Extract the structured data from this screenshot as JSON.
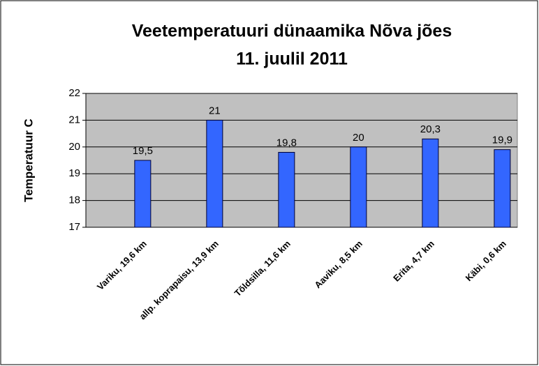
{
  "chart_data": {
    "type": "bar",
    "title": "Veetemperatuuri dünaamika Nõva jões",
    "subtitle": "11. juulil 2011",
    "y_label": "Temperatuur C",
    "categories": [
      "Variku, 19,6 km",
      "allp. koprapaisu, 13,9 km",
      "Tõldsilla, 11,6 km",
      "Aaviku, 8,5 km",
      "Erita, 4,7 km",
      "Käbi, 0,6 km"
    ],
    "values": [
      19.5,
      21,
      19.8,
      20,
      20.3,
      19.9
    ],
    "value_labels": [
      "19,5",
      "21",
      "19,8",
      "20",
      "20,3",
      "19,9"
    ],
    "color": "#3366ff",
    "ylim": [
      17,
      22
    ],
    "yticks": [
      17,
      18,
      19,
      20,
      21,
      22
    ],
    "grid": true
  }
}
